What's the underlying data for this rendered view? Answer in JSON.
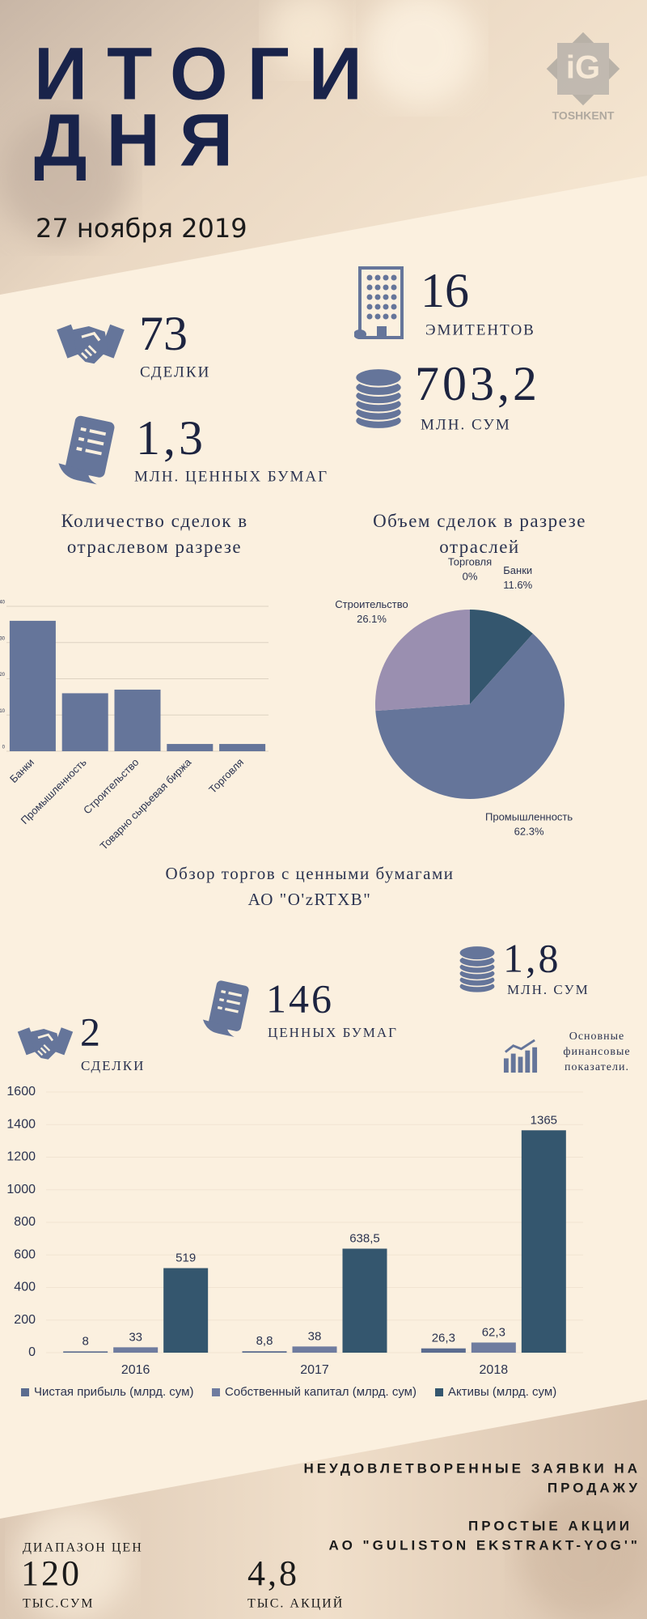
{
  "header": {
    "title_lines": [
      "ИТОГИ",
      "ДНЯ"
    ],
    "date": "27 ноября 2019",
    "logo": "TOSHKENT"
  },
  "stats": [
    {
      "value": "73",
      "label": "СДЕЛКИ"
    },
    {
      "value": "16",
      "label": "ЭМИТЕНТОВ"
    },
    {
      "value": "703,2",
      "label": "МЛН. СУМ"
    },
    {
      "value": "1,3",
      "label": "МЛН. ЦЕННЫХ БУМАГ"
    }
  ],
  "section_title": [
    "Обзор торгов с ценными бумагами",
    "АО \"O'zRTXB\""
  ],
  "otc_stats": [
    {
      "value": "1,8",
      "label": "МЛН. СУМ"
    },
    {
      "value": "146",
      "label": "ЦЕННЫХ БУМАГ"
    },
    {
      "value": "2",
      "label": "СДЕЛКИ"
    }
  ],
  "financial_label": [
    "Основные",
    "финансовые",
    "показатели."
  ],
  "footer": {
    "heading_lines": [
      "НЕУДОВЛЕТВОРЕННЫЕ ЗАЯВКИ НА",
      "ПРОДАЖУ"
    ],
    "stock_lines": [
      "ПРОСТЫЕ АКЦИИ",
      "АО \"GULISTON EKSTRAKT-YOG'\""
    ],
    "price_label": "ДИАПАЗОН ЦЕН",
    "price_value": "120",
    "price_unit": "ТЫС.СУМ",
    "quantity_value": "4,8",
    "quantity_unit": "ТЫС. АКЦИЙ"
  },
  "chart_data": [
    {
      "type": "bar",
      "title": "Количество сделок в отраслевом разрезе",
      "categories": [
        "Банки",
        "Промышленность",
        "Строительство",
        "Товарно сырьевая биржа",
        "Торговля"
      ],
      "values": [
        36,
        16,
        17,
        2,
        2
      ],
      "color": "#65759a",
      "ylim": [
        0,
        40
      ],
      "yticks": [
        0,
        10,
        20,
        30,
        40
      ],
      "grid": true
    },
    {
      "type": "pie",
      "title": "Объем сделок в разрезе отраслей",
      "categories": [
        "Банки",
        "Промышленность",
        "Строительство",
        "Торговля"
      ],
      "values": [
        11.6,
        62.3,
        26.1,
        0
      ],
      "value_labels": [
        "11.6%",
        "62.3%",
        "26.1%",
        "0%"
      ],
      "colors": [
        "#34566e",
        "#65759a",
        "#9a8fb0",
        "#c9a8b8"
      ]
    },
    {
      "type": "grouped-bar",
      "categories": [
        "2016",
        "2017",
        "2018"
      ],
      "series": [
        {
          "name": "Чистая прибыль (млрд. сум)",
          "color": "#5b6c8f",
          "values": [
            8,
            8.8,
            26.3
          ],
          "value_labels": [
            "8",
            "8,8",
            "26,3"
          ]
        },
        {
          "name": "Собственный капитал (млрд. сум)",
          "color": "#6f7c9f",
          "values": [
            33,
            38,
            62.3
          ],
          "value_labels": [
            "33",
            "38",
            "62,3"
          ]
        },
        {
          "name": "Активы (млрд. сум)",
          "color": "#34566e",
          "values": [
            519,
            638.5,
            1365
          ],
          "value_labels": [
            "519",
            "638,5",
            "1365"
          ]
        }
      ],
      "ylim": [
        0,
        1600
      ],
      "yticks": [
        0,
        200,
        400,
        600,
        800,
        1000,
        1200,
        1400,
        1600
      ],
      "grid": true,
      "legend": "bottom"
    }
  ]
}
